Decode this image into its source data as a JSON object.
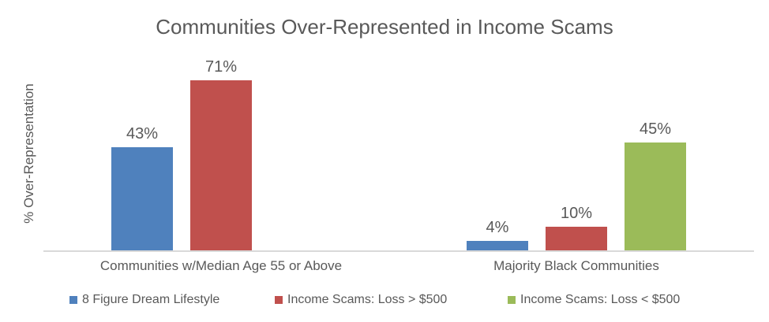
{
  "chart_data": {
    "type": "bar",
    "title": "Communities Over-Represented in Income Scams",
    "ylabel": "% Over-Representation",
    "xlabel": "",
    "categories": [
      "Communities w/Median Age 55 or Above",
      "Majority Black Communities"
    ],
    "series": [
      {
        "name": "8 Figure Dream Lifestyle",
        "color": "#4F81BD",
        "values": [
          43,
          4
        ],
        "labels": [
          "43%",
          "4%"
        ]
      },
      {
        "name": "Income Scams: Loss > $500",
        "color": "#C0504D",
        "values": [
          71,
          10
        ],
        "labels": [
          "71%",
          "10%"
        ]
      },
      {
        "name": "Income Scams: Loss < $500",
        "color": "#9BBB59",
        "values": [
          0,
          45
        ],
        "labels": [
          "",
          "45%"
        ]
      }
    ],
    "ylim": [
      0,
      85
    ],
    "grid": false,
    "legend_position": "bottom",
    "text_color": "#595959",
    "axis_line_color": "#D9D9D9",
    "background": "#FFFFFF"
  }
}
